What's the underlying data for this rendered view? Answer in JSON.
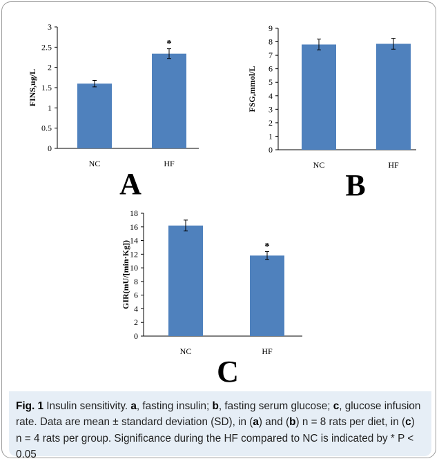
{
  "chart_data": [
    {
      "type": "bar",
      "panel_label": "A",
      "categories": [
        "NC",
        "HF"
      ],
      "values": [
        1.6,
        2.34
      ],
      "errors": [
        0.08,
        0.12
      ],
      "significance": [
        "",
        "*"
      ],
      "ylabel": "FINS,ug/L",
      "ylim": [
        0,
        3
      ],
      "yticks": [
        "0",
        "0.5",
        "1",
        "1.5",
        "2",
        "2.5",
        "3"
      ],
      "grid": false,
      "color": "#4f81bd"
    },
    {
      "type": "bar",
      "panel_label": "B",
      "categories": [
        "NC",
        "HF"
      ],
      "values": [
        7.8,
        7.85
      ],
      "errors": [
        0.4,
        0.4
      ],
      "significance": [
        "",
        ""
      ],
      "ylabel": "FSG,mmol/L",
      "ylim": [
        0,
        9
      ],
      "yticks": [
        "0",
        "1",
        "2",
        "3",
        "4",
        "5",
        "6",
        "7",
        "8",
        "9"
      ],
      "grid": false,
      "color": "#4f81bd"
    },
    {
      "type": "bar",
      "panel_label": "C",
      "categories": [
        "NC",
        "HF"
      ],
      "values": [
        16.2,
        11.8
      ],
      "errors": [
        0.8,
        0.6
      ],
      "significance": [
        "",
        "*"
      ],
      "ylabel": "GIR(mU/[min·Kg])",
      "ylim": [
        0,
        18
      ],
      "yticks": [
        "0",
        "2",
        "4",
        "6",
        "8",
        "10",
        "12",
        "14",
        "16",
        "18"
      ],
      "grid": false,
      "color": "#4f81bd"
    }
  ],
  "caption": {
    "fig_label": "Fig. 1",
    "segments": [
      {
        "text": " Insulin sensitivity. ",
        "bold": false
      },
      {
        "text": "a",
        "bold": true
      },
      {
        "text": ", fasting insulin; ",
        "bold": false
      },
      {
        "text": "b",
        "bold": true
      },
      {
        "text": ", fasting serum glucose; ",
        "bold": false
      },
      {
        "text": "c",
        "bold": true
      },
      {
        "text": ", glucose infusion rate. Data are mean ± standard deviation (SD), in (",
        "bold": false
      },
      {
        "text": "a",
        "bold": true
      },
      {
        "text": ") and (",
        "bold": false
      },
      {
        "text": "b",
        "bold": true
      },
      {
        "text": ") n = 8 rats per diet, in (",
        "bold": false
      },
      {
        "text": "c",
        "bold": true
      },
      {
        "text": ") n = 4 rats per group. Significance during the HF compared to NC is indicated by * P < 0.05",
        "bold": false
      }
    ]
  }
}
